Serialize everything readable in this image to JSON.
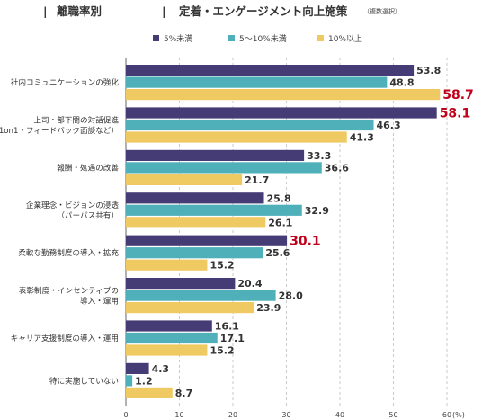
{
  "header": {
    "divider": "|",
    "section": "離職率別",
    "title": "定着・エンゲージメント向上施策",
    "note": "（複数選択）"
  },
  "chart_data": {
    "type": "bar",
    "orientation": "horizontal",
    "categories": [
      [
        "社内コミュニケーションの強化"
      ],
      [
        "上司・部下間の対話促進",
        "（1on1・フィードバック面談など）"
      ],
      [
        "報酬・処遇の改善"
      ],
      [
        "企業理念・ビジョンの浸透",
        "（パーパス共有）"
      ],
      [
        "柔軟な勤務制度の導入・拡充"
      ],
      [
        "表彰制度・インセンティブの",
        "導入・運用"
      ],
      [
        "キャリア支援制度の導入・運用"
      ],
      [
        "特に実施していない"
      ]
    ],
    "series": [
      {
        "name": "5%未満",
        "color": "#463c75",
        "values": [
          53.8,
          58.1,
          33.3,
          25.8,
          30.1,
          20.4,
          16.1,
          4.3
        ]
      },
      {
        "name": "5〜10%未満",
        "color": "#4fb0b9",
        "values": [
          48.8,
          46.3,
          36.6,
          32.9,
          25.6,
          28.0,
          17.1,
          1.2
        ]
      },
      {
        "name": "10%以上",
        "color": "#efc961",
        "values": [
          58.7,
          41.3,
          21.7,
          26.1,
          15.2,
          23.9,
          15.2,
          8.7
        ]
      }
    ],
    "highlights": [
      [
        0,
        2
      ],
      [
        1,
        0
      ],
      [
        4,
        0
      ]
    ],
    "highlight_color": "#c0001a",
    "xlim": [
      0,
      60
    ],
    "xticks": [
      0,
      10,
      20,
      30,
      40,
      50,
      60
    ],
    "xunit": "(%)",
    "grid": true,
    "legend": "top-center"
  }
}
